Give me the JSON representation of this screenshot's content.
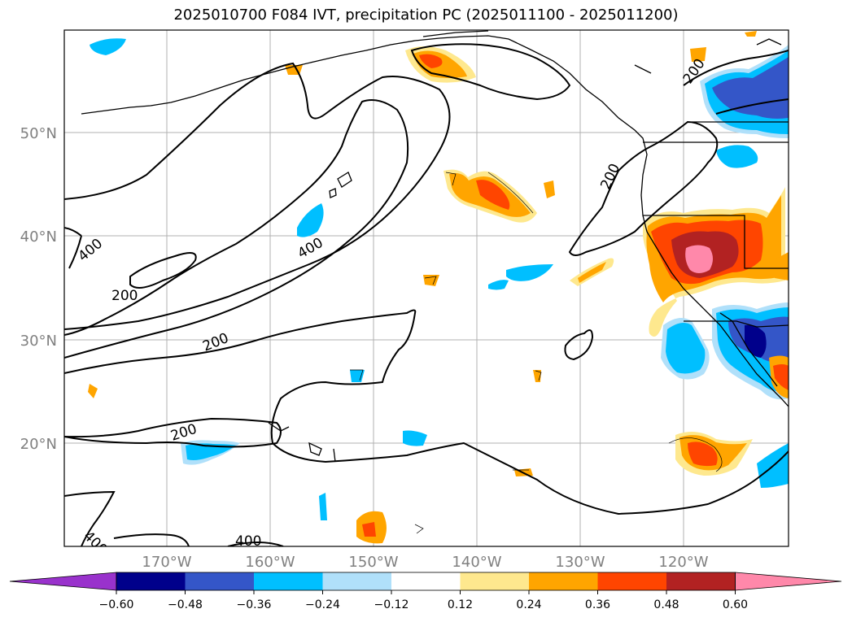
{
  "title": "2025010700 F084 IVT, precipitation PC (2025011100 - 2025011200)",
  "axes": {
    "lat_labels": [
      "50°N",
      "40°N",
      "30°N",
      "20°N"
    ],
    "lon_labels": [
      "170°W",
      "160°W",
      "150°W",
      "140°W",
      "130°W",
      "120°W"
    ]
  },
  "contour_labels": [
    "400",
    "200",
    "400",
    "200",
    "200",
    "200",
    "200",
    "400",
    "400"
  ],
  "colorbar": {
    "colors": [
      "#9932cc",
      "#00008b",
      "#3456c8",
      "#00bfff",
      "#b0e0fa",
      "#ffffff",
      "#fee88e",
      "#ffa500",
      "#ff4500",
      "#b22222",
      "#ff88aa"
    ],
    "ticks": [
      "−0.60",
      "−0.48",
      "−0.36",
      "−0.24",
      "−0.12",
      "0.12",
      "0.24",
      "0.36",
      "0.48",
      "0.60"
    ]
  }
}
